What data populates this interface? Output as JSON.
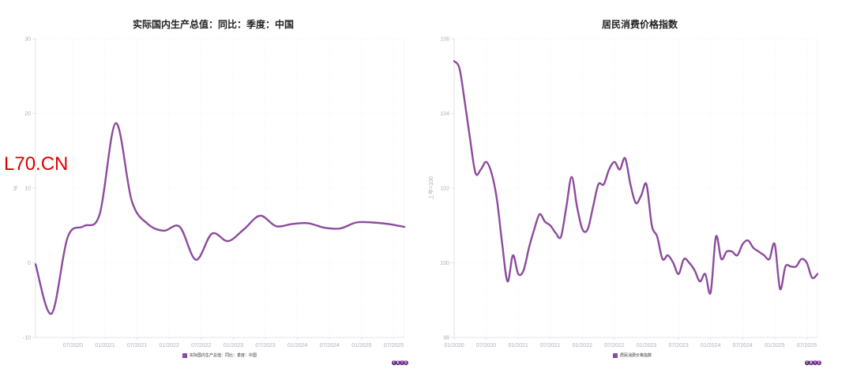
{
  "watermark": "L70.CN",
  "logo": {
    "letters": [
      "C",
      "E",
      "I",
      "C"
    ],
    "name": "CEIC"
  },
  "chart_data": [
    {
      "type": "line",
      "title": "实际国内生产总值：同比：季度：中国",
      "xlabel": "",
      "ylabel": "%",
      "ylim": [
        -10,
        30
      ],
      "yticks": [
        "30",
        "20",
        "10",
        "0",
        "-10"
      ],
      "xticks": [
        "07/2020",
        "01/2021",
        "07/2021",
        "01/2022",
        "07/2022",
        "01/2023",
        "07/2023",
        "01/2024",
        "07/2024",
        "01/2025",
        "07/2025"
      ],
      "grid": true,
      "legend": {
        "position": "bottom",
        "entries": [
          "实际国内生产总值：同比：季度：中国"
        ]
      },
      "series": [
        {
          "name": "实际国内生产总值：同比：季度：中国",
          "color": "#8c4b9c",
          "x": [
            "12/2019",
            "03/2020",
            "06/2020",
            "09/2020",
            "12/2020",
            "03/2021",
            "06/2021",
            "09/2021",
            "12/2021",
            "03/2022",
            "06/2022",
            "09/2022",
            "12/2022",
            "03/2023",
            "06/2023",
            "09/2023",
            "12/2023",
            "03/2024",
            "06/2024",
            "09/2024",
            "12/2024",
            "03/2025",
            "06/2025",
            "09/2025"
          ],
          "values": [
            -0.2,
            -6.8,
            3.4,
            4.9,
            6.5,
            18.7,
            8.3,
            5.2,
            4.3,
            4.8,
            0.4,
            3.9,
            2.9,
            4.5,
            6.3,
            4.9,
            5.2,
            5.3,
            4.7,
            4.6,
            5.4,
            5.4,
            5.2,
            4.8
          ]
        }
      ]
    },
    {
      "type": "line",
      "title": "居民消费价格指数",
      "xlabel": "",
      "ylabel": "上年=100",
      "ylim": [
        98,
        106
      ],
      "yticks": [
        "106",
        "104",
        "102",
        "100",
        "98"
      ],
      "xticks": [
        "01/2020",
        "07/2020",
        "01/2021",
        "07/2021",
        "01/2022",
        "07/2022",
        "01/2023",
        "07/2023",
        "01/2024",
        "07/2024",
        "01/2025",
        "07/2025"
      ],
      "grid": true,
      "legend": {
        "position": "bottom",
        "entries": [
          "居民消费价格指数"
        ]
      },
      "series": [
        {
          "name": "居民消费价格指数",
          "color": "#8c4b9c",
          "x": [
            "01/2020",
            "02/2020",
            "03/2020",
            "04/2020",
            "05/2020",
            "06/2020",
            "07/2020",
            "08/2020",
            "09/2020",
            "10/2020",
            "11/2020",
            "12/2020",
            "01/2021",
            "02/2021",
            "03/2021",
            "04/2021",
            "05/2021",
            "06/2021",
            "07/2021",
            "08/2021",
            "09/2021",
            "10/2021",
            "11/2021",
            "12/2021",
            "01/2022",
            "02/2022",
            "03/2022",
            "04/2022",
            "05/2022",
            "06/2022",
            "07/2022",
            "08/2022",
            "09/2022",
            "10/2022",
            "11/2022",
            "12/2022",
            "01/2023",
            "02/2023",
            "03/2023",
            "04/2023",
            "05/2023",
            "06/2023",
            "07/2023",
            "08/2023",
            "09/2023",
            "10/2023",
            "11/2023",
            "12/2023",
            "01/2024",
            "02/2024",
            "03/2024",
            "04/2024",
            "05/2024",
            "06/2024",
            "07/2024",
            "08/2024",
            "09/2024",
            "10/2024",
            "11/2024",
            "12/2024",
            "01/2025",
            "02/2025",
            "03/2025",
            "04/2025",
            "05/2025",
            "06/2025",
            "07/2025",
            "08/2025",
            "09/2025"
          ],
          "values": [
            105.4,
            105.2,
            104.3,
            103.3,
            102.4,
            102.5,
            102.7,
            102.4,
            101.7,
            100.5,
            99.5,
            100.2,
            99.7,
            99.8,
            100.4,
            100.9,
            101.3,
            101.1,
            101.0,
            100.8,
            100.7,
            101.5,
            102.3,
            101.5,
            100.9,
            100.9,
            101.5,
            102.1,
            102.1,
            102.5,
            102.7,
            102.5,
            102.8,
            102.1,
            101.6,
            101.8,
            102.1,
            101.0,
            100.7,
            100.1,
            100.2,
            100.0,
            99.7,
            100.1,
            100.0,
            99.8,
            99.5,
            99.7,
            99.2,
            100.7,
            100.1,
            100.3,
            100.3,
            100.2,
            100.5,
            100.6,
            100.4,
            100.3,
            100.2,
            100.1,
            100.5,
            99.3,
            99.9,
            99.9,
            99.9,
            100.1,
            100.0,
            99.6,
            99.7
          ]
        }
      ]
    }
  ]
}
